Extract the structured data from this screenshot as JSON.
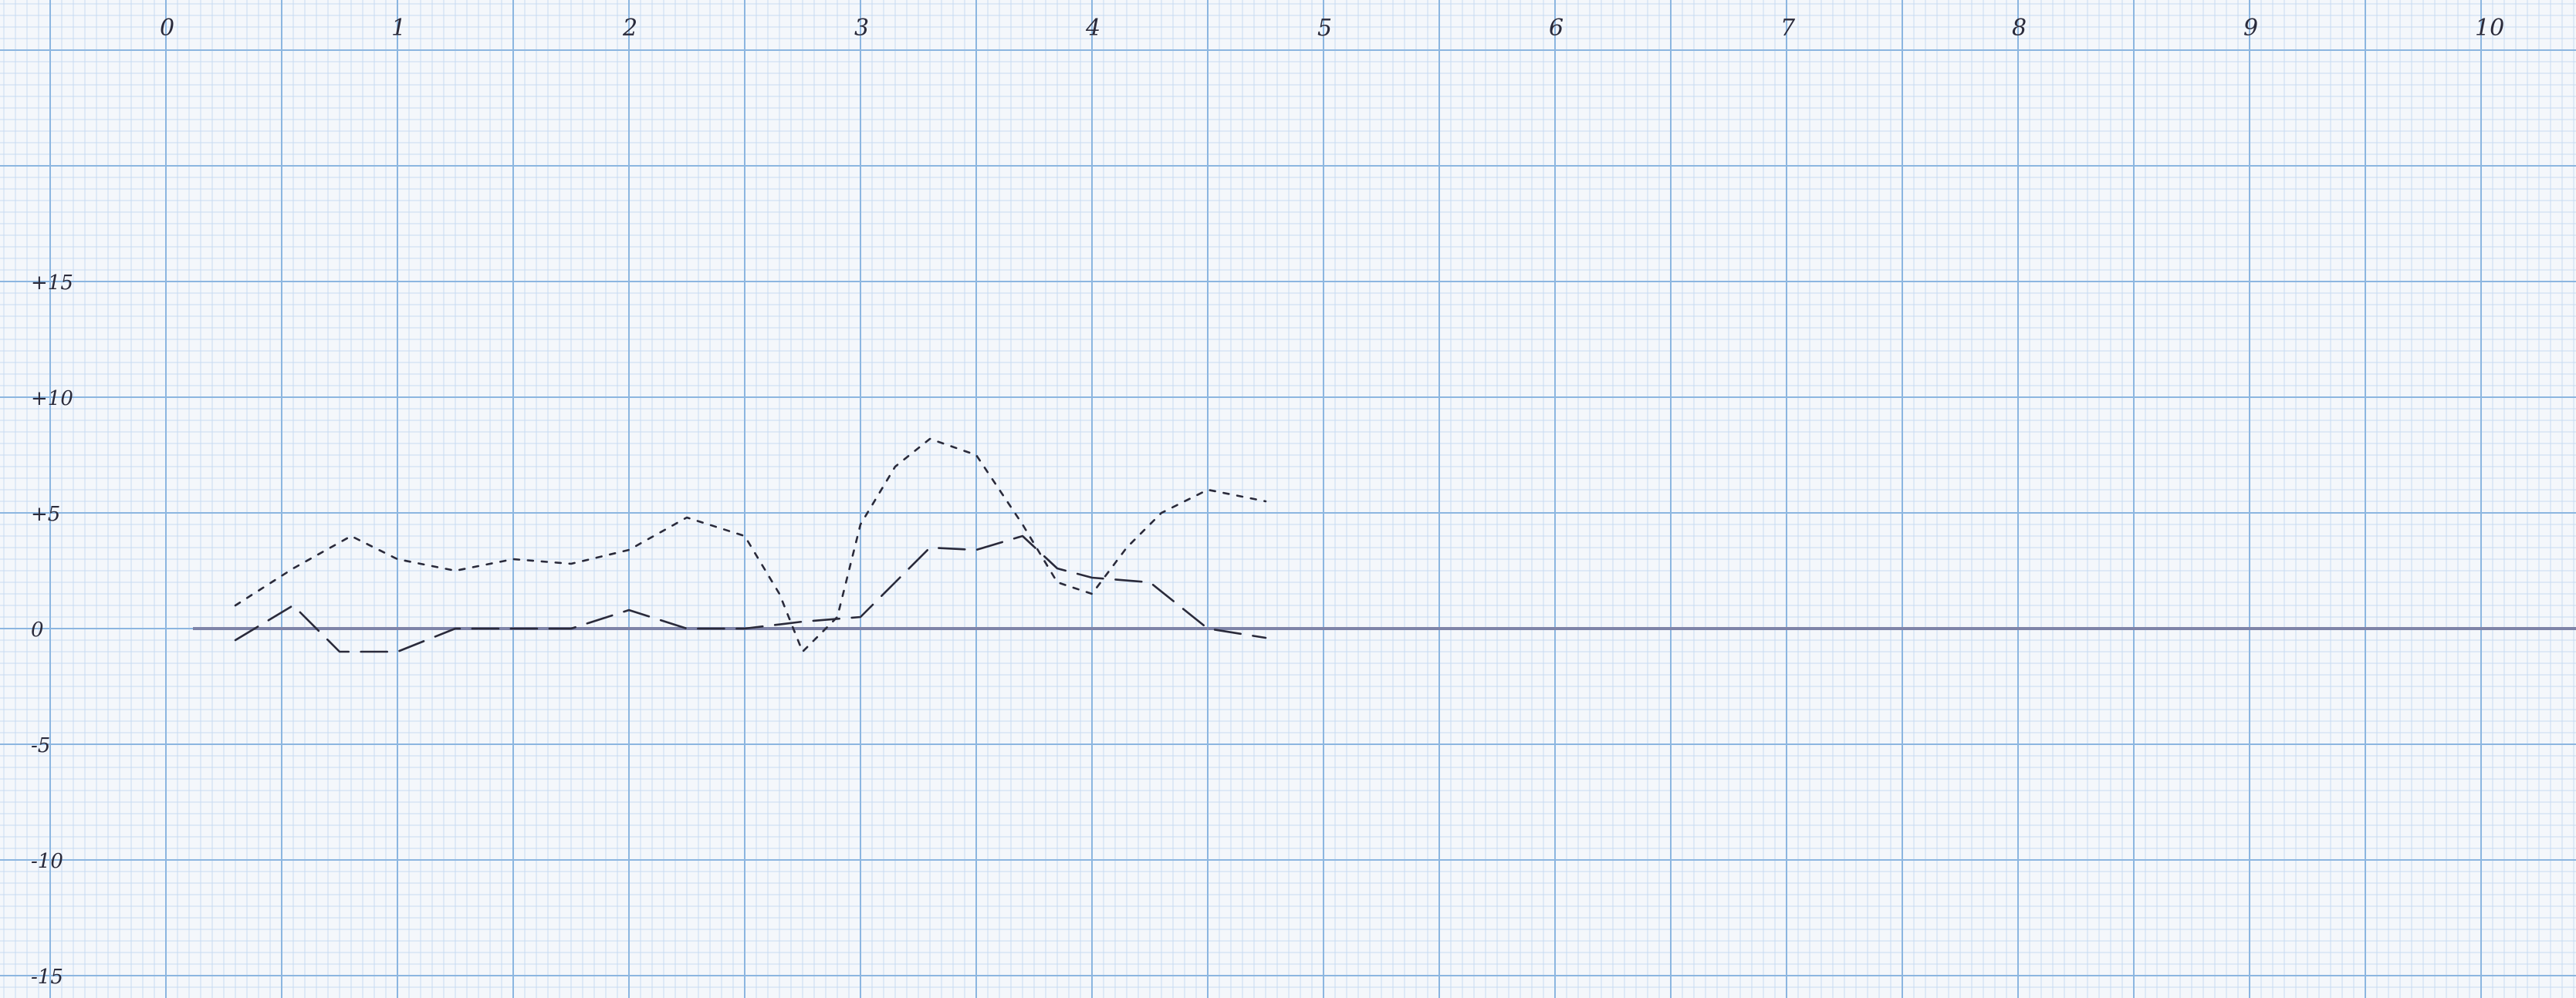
{
  "chart_data": {
    "type": "line",
    "title": "",
    "xlabel": "",
    "ylabel": "",
    "x_ticks": [
      "0",
      "1",
      "2",
      "3",
      "4",
      "5",
      "6",
      "7",
      "8",
      "9",
      "10"
    ],
    "y_ticks": [
      "+15",
      "+10",
      "+5",
      "0",
      "-5",
      "-10",
      "-15"
    ],
    "xlim": [
      0,
      10
    ],
    "ylim": [
      -15,
      15
    ],
    "grid": true,
    "legend": "none",
    "baseline": 0,
    "series": [
      {
        "style": "short-dash",
        "points": [
          [
            0.3,
            1.0
          ],
          [
            0.55,
            2.6
          ],
          [
            0.8,
            4.0
          ],
          [
            1.0,
            3.0
          ],
          [
            1.25,
            2.5
          ],
          [
            1.5,
            3.0
          ],
          [
            1.75,
            2.8
          ],
          [
            2.0,
            3.4
          ],
          [
            2.25,
            4.8
          ],
          [
            2.5,
            4.0
          ],
          [
            2.65,
            1.5
          ],
          [
            2.75,
            -1.0
          ],
          [
            2.9,
            0.5
          ],
          [
            3.0,
            4.5
          ],
          [
            3.15,
            7.0
          ],
          [
            3.3,
            8.2
          ],
          [
            3.5,
            7.5
          ],
          [
            3.7,
            4.5
          ],
          [
            3.85,
            2.0
          ],
          [
            4.0,
            1.5
          ],
          [
            4.15,
            3.5
          ],
          [
            4.3,
            5.0
          ],
          [
            4.5,
            6.0
          ],
          [
            4.75,
            5.5
          ]
        ]
      },
      {
        "style": "long-dash",
        "points": [
          [
            0.3,
            -0.5
          ],
          [
            0.55,
            1.0
          ],
          [
            0.75,
            -1.0
          ],
          [
            1.0,
            -1.0
          ],
          [
            1.25,
            0.0
          ],
          [
            1.5,
            0.0
          ],
          [
            1.75,
            0.0
          ],
          [
            2.0,
            0.8
          ],
          [
            2.25,
            0.0
          ],
          [
            2.5,
            0.0
          ],
          [
            2.75,
            0.3
          ],
          [
            3.0,
            0.5
          ],
          [
            3.15,
            2.0
          ],
          [
            3.3,
            3.5
          ],
          [
            3.5,
            3.4
          ],
          [
            3.7,
            4.0
          ],
          [
            3.85,
            2.6
          ],
          [
            4.0,
            2.2
          ],
          [
            4.25,
            2.0
          ],
          [
            4.5,
            0.0
          ],
          [
            4.75,
            -0.4
          ]
        ]
      }
    ]
  },
  "colors": {
    "paper": "#f4f7fb",
    "grid_major": "#8cb6e0",
    "grid_minor": "#c7dbf1",
    "baseline": "#7f84a8",
    "ink": "#2a2a3a"
  }
}
